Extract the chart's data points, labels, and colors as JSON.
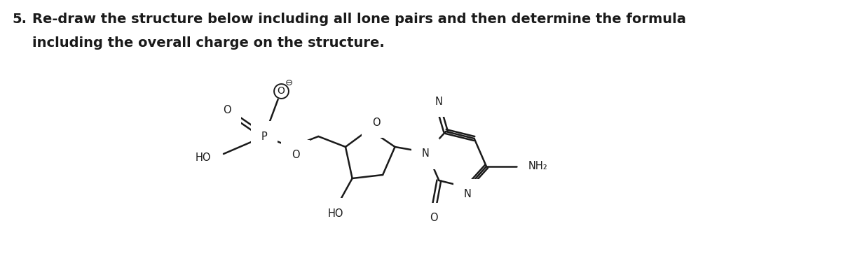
{
  "title_number": "5.",
  "title_text": "Re-draw the structure below including all lone pairs and then determine the formula",
  "title_text2": "including the overall charge on the structure.",
  "title_fontsize": 14,
  "bg_color": "#ffffff",
  "line_color": "#1a1a1a",
  "line_width": 1.8,
  "font_size_labels": 10.5
}
